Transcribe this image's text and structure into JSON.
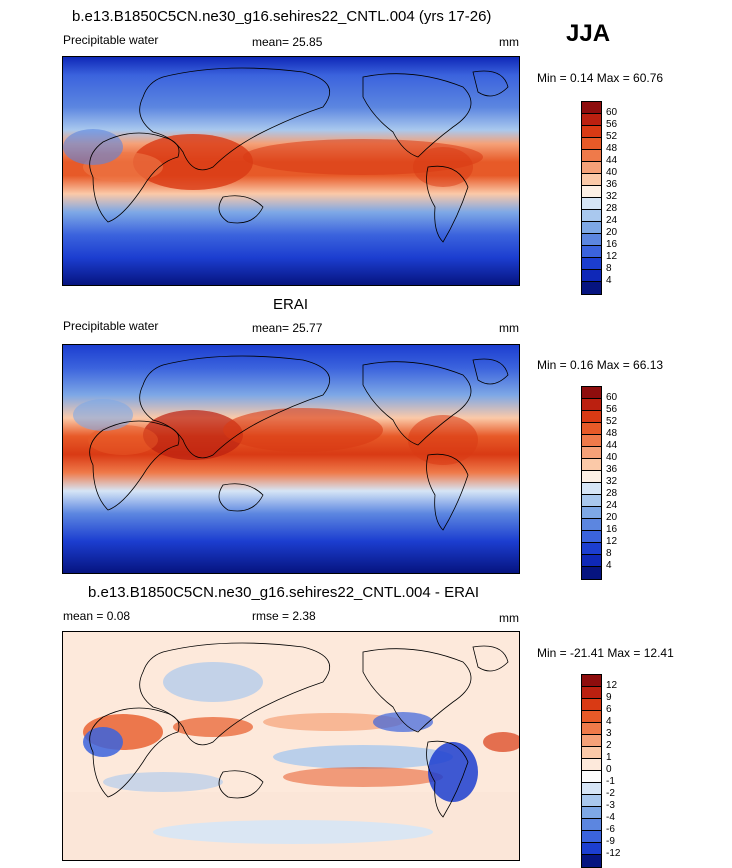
{
  "season": "JJA",
  "panels": [
    {
      "title": "b.e13.B1850C5CN.ne30_g16.sehires22_CNTL.004 (yrs 17-26)",
      "left_label": "Precipitable water",
      "center_label": "mean=  25.85",
      "right_label": "mm",
      "minmax": "Min =  0.14 Max =  60.76",
      "levels": [
        "60",
        "56",
        "52",
        "48",
        "44",
        "40",
        "36",
        "32",
        "28",
        "24",
        "20",
        "16",
        "12",
        "8",
        "4"
      ],
      "colors": [
        "#8e0d0d",
        "#bb2010",
        "#d93a14",
        "#e75a28",
        "#ef7a4a",
        "#f5a178",
        "#fbc9a8",
        "#fdf0e5",
        "#d6e5f6",
        "#a9c8ee",
        "#7ea8e6",
        "#5c86e0",
        "#3b63dd",
        "#1c3ed0",
        "#0f28b8",
        "#061480"
      ]
    },
    {
      "title": "ERAI",
      "left_label": "Precipitable water",
      "center_label": "mean=  25.77",
      "right_label": "mm",
      "minmax": "Min =  0.16 Max =  66.13",
      "levels": [
        "60",
        "56",
        "52",
        "48",
        "44",
        "40",
        "36",
        "32",
        "28",
        "24",
        "20",
        "16",
        "12",
        "8",
        "4"
      ],
      "colors": [
        "#8e0d0d",
        "#bb2010",
        "#d93a14",
        "#e75a28",
        "#ef7a4a",
        "#f5a178",
        "#fbc9a8",
        "#fdf0e5",
        "#d6e5f6",
        "#a9c8ee",
        "#7ea8e6",
        "#5c86e0",
        "#3b63dd",
        "#1c3ed0",
        "#0f28b8",
        "#061480"
      ]
    },
    {
      "title": "b.e13.B1850C5CN.ne30_g16.sehires22_CNTL.004 - ERAI",
      "left_label": "mean =   0.08",
      "center_label": "rmse =   2.38",
      "right_label": "mm",
      "minmax": "Min = -21.41 Max =  12.41",
      "levels": [
        "12",
        "9",
        "6",
        "4",
        "3",
        "2",
        "1",
        "0",
        "-1",
        "-2",
        "-3",
        "-4",
        "-6",
        "-9",
        "-12"
      ],
      "colors": [
        "#8e0d0d",
        "#bb2010",
        "#d93a14",
        "#e75a28",
        "#ef7a4a",
        "#f5a178",
        "#fbc9a8",
        "#fde9db",
        "#fdfdfd",
        "#d6e5f6",
        "#a9c8ee",
        "#7ea8e6",
        "#5c86e0",
        "#3b63dd",
        "#1c3ed0",
        "#061480"
      ]
    }
  ]
}
